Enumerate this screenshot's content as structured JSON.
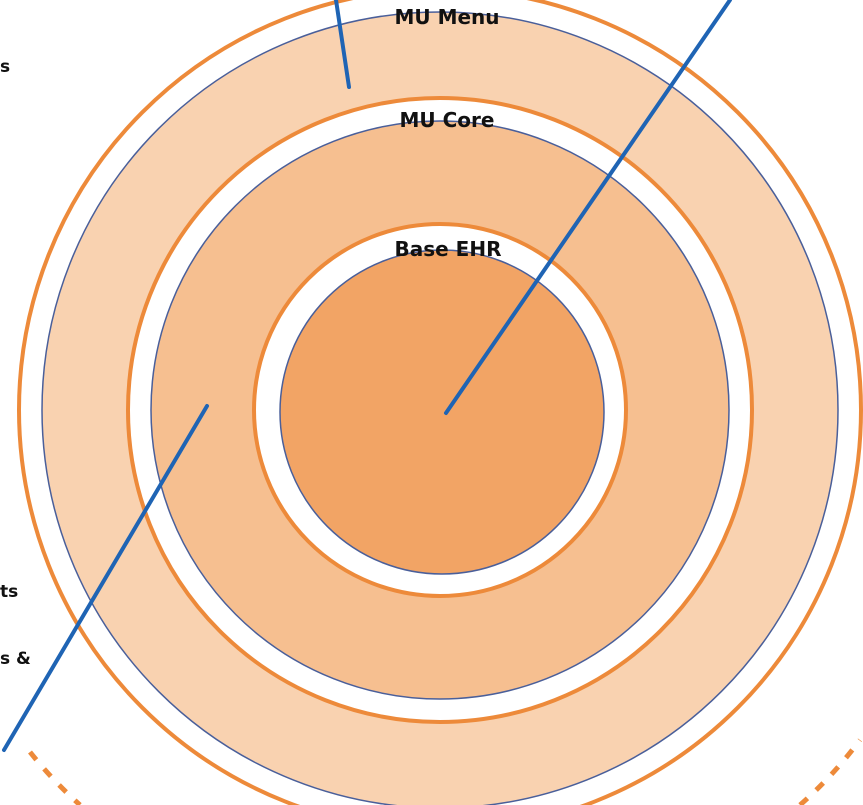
{
  "labels": {
    "outer_ring": "MU Menu",
    "middle_ring": "MU Core",
    "inner_circle": "Base EHR"
  },
  "side_fragments": {
    "top": "s",
    "lower": "ts",
    "bottom": "s &"
  },
  "colors": {
    "outer_band": "#f9d2b0",
    "middle_band": "#f6bf90",
    "core_fill": "#f2a465",
    "ring_stroke": "#ed8a3a",
    "band_edge": "#4a5f9a",
    "pointer_line": "#1f64b4"
  }
}
